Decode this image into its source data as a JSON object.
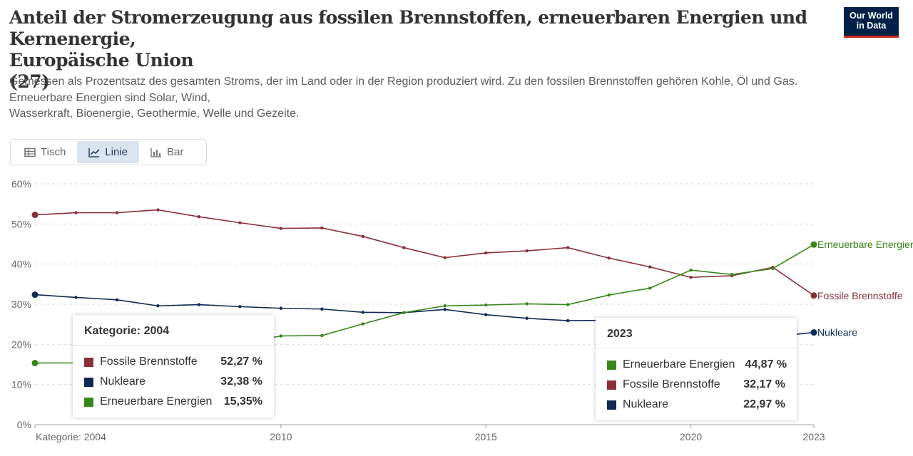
{
  "header": {
    "title_line1": "Anteil der Stromerzeugung aus fossilen Brennstoffen, erneuerbaren Energien und Kernenergie,",
    "title_line2": "Europäische Union",
    "title_line3": "(27)",
    "subtitle_line1": "Gemessen als Prozentsatz des gesamten Stroms, der im Land oder in der Region produziert wird. Zu den fossilen Brennstoffen gehören Kohle, Öl und Gas.",
    "subtitle_line2": "Erneuerbare Energien sind Solar, Wind,",
    "subtitle_line3": "Wasserkraft, Bioenergie, Geothermie, Welle und Gezeite.",
    "logo_line1": "Our World",
    "logo_line2": "in Data"
  },
  "tabs": [
    {
      "label": "Tisch",
      "icon": "table-icon",
      "active": false
    },
    {
      "label": "Linie",
      "icon": "line-chart-icon",
      "active": true
    },
    {
      "label": "Bar",
      "icon": "bar-chart-icon",
      "active": false
    }
  ],
  "chart_data": {
    "type": "line",
    "x": [
      2004,
      2005,
      2006,
      2007,
      2008,
      2009,
      2010,
      2011,
      2012,
      2013,
      2014,
      2015,
      2016,
      2017,
      2018,
      2019,
      2020,
      2021,
      2022,
      2023
    ],
    "series": [
      {
        "name": "Fossile Brennstoffe",
        "color": "#883039",
        "values": [
          52.27,
          52.8,
          52.8,
          53.5,
          51.8,
          50.3,
          48.9,
          49.0,
          46.9,
          44.1,
          41.6,
          42.8,
          43.3,
          44.1,
          41.5,
          39.3,
          36.7,
          37.1,
          39.2,
          32.17
        ]
      },
      {
        "name": "Nukleare",
        "color": "#102a55",
        "values": [
          32.38,
          31.7,
          31.1,
          29.6,
          29.9,
          29.4,
          29.0,
          28.8,
          28.0,
          27.9,
          28.7,
          27.4,
          26.5,
          25.9,
          26.0,
          25.2,
          24.1,
          24.6,
          21.9,
          22.97
        ]
      },
      {
        "name": "Erneuerbare Energien",
        "color": "#38871a",
        "values": [
          15.35,
          15.4,
          15.9,
          16.9,
          18.3,
          20.3,
          22.1,
          22.2,
          25.1,
          27.9,
          29.6,
          29.8,
          30.1,
          29.9,
          32.3,
          34.0,
          38.5,
          37.4,
          38.9,
          44.87
        ]
      }
    ],
    "end_labels": {
      "Fossile Brennstoffe": "Fossile Brennstoffe",
      "Nukleare": "Nukleare",
      "Erneuerbare Energien": "Erneuerbare Energien"
    },
    "ylim": [
      0,
      60
    ],
    "y_ticks": [
      0,
      10,
      20,
      30,
      40,
      50,
      60
    ],
    "y_tick_labels": [
      "0%",
      "10%",
      "20%",
      "30%",
      "40%",
      "50%",
      "60%"
    ],
    "x_ticks": [
      2004,
      2010,
      2015,
      2020,
      2023
    ],
    "x_tick_labels": [
      "Kategorie: 2004",
      "2010",
      "2015",
      "2020",
      "2023"
    ],
    "grid": true,
    "grid_color": "#dddddd",
    "axis_color": "#a0a0a0"
  },
  "tooltip_left": {
    "title": "Kategorie: 2004",
    "rows": [
      {
        "label": "Fossile Brennstoffe",
        "value": "52,27 %",
        "color": "#883039"
      },
      {
        "label": "Nukleare",
        "value": "32,38 %",
        "color": "#102a55"
      },
      {
        "label": "Erneuerbare Energien",
        "value": "15,35%",
        "color": "#38871a"
      }
    ]
  },
  "tooltip_right": {
    "title": "2023",
    "rows": [
      {
        "label": "Erneuerbare Energien",
        "value": "44,87 %",
        "color": "#38871a"
      },
      {
        "label": "Fossile Brennstoffe",
        "value": "32,17 %",
        "color": "#883039"
      },
      {
        "label": "Nukleare",
        "value": "22,97 %",
        "color": "#102a55"
      }
    ]
  }
}
